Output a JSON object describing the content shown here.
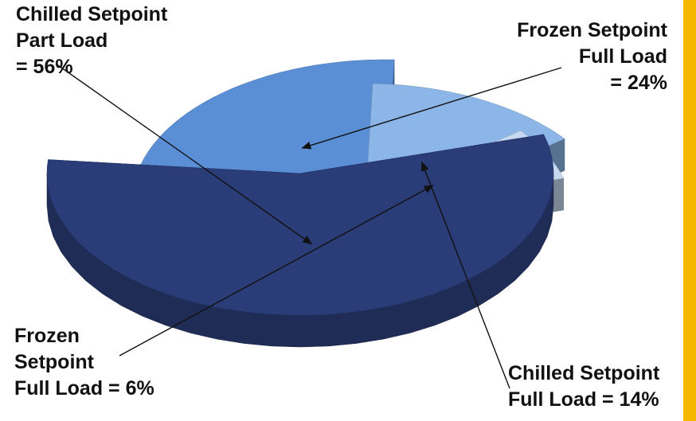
{
  "chart_data": {
    "type": "pie",
    "style": "3d-exploded",
    "title": "",
    "slices": [
      {
        "label": "Chilled Setpoint\nPart Load\n= 56%",
        "value": 56,
        "color": "#2b3d78"
      },
      {
        "label": "Frozen Setpoint\nFull Load\n= 24%",
        "value": 24,
        "color": "#5a8fd6"
      },
      {
        "label": "Chilled Setpoint\nFull Load = 14%",
        "value": 14,
        "color": "#8db6e8"
      },
      {
        "label": "Frozen\nSetpoint\nFull Load = 6%",
        "value": 6,
        "color": "#c6d9f1"
      }
    ],
    "legend": "none",
    "accent_color": "#f5b800"
  }
}
